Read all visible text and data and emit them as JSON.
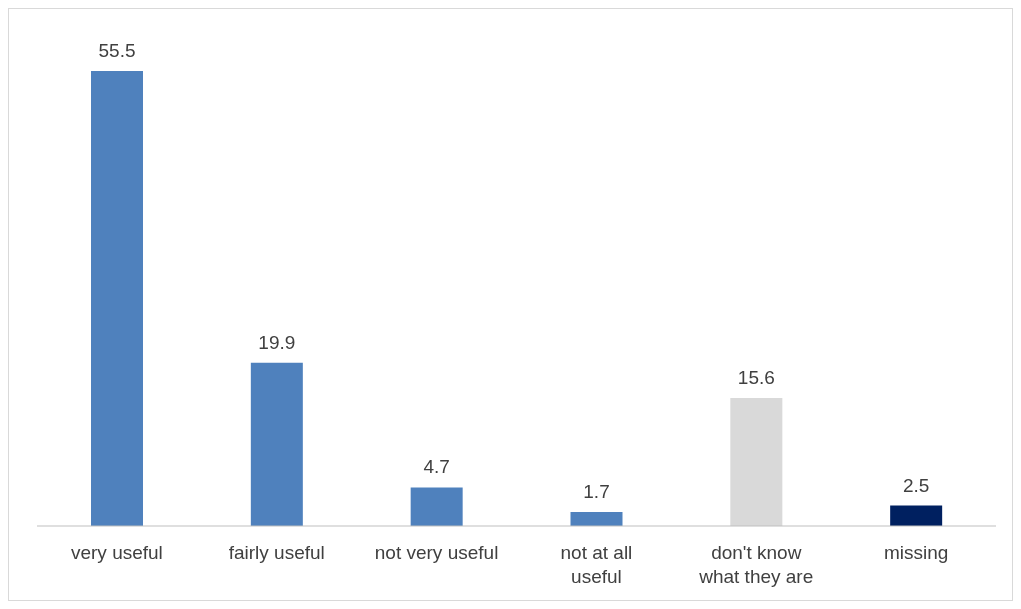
{
  "chart_data": {
    "type": "bar",
    "categories": [
      "very useful",
      "fairly useful",
      "not very useful",
      "not at all useful",
      "don't know what they are",
      "missing"
    ],
    "values": [
      55.5,
      19.9,
      4.7,
      1.7,
      15.6,
      2.5
    ],
    "colors": [
      "#4f81bd",
      "#4f81bd",
      "#4f81bd",
      "#4f81bd",
      "#d9d9d9",
      "#002060"
    ],
    "data_labels": true
  }
}
